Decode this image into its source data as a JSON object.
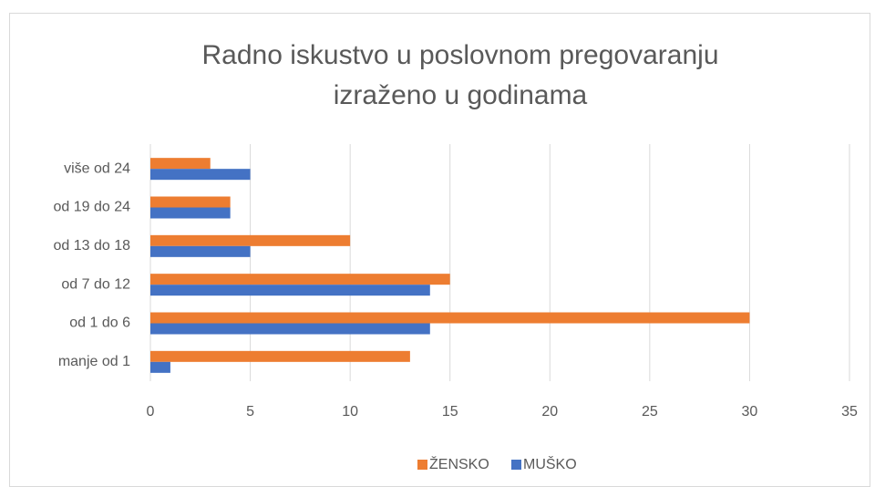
{
  "chart_data": {
    "type": "barh",
    "title": [
      "Radno iskustvo u poslovnom pregovaranju",
      "izraženo u godinama"
    ],
    "categories": [
      "manje od 1",
      "od 1 do 6",
      "od 7 do 12",
      "od 13 do 18",
      "od 19 do 24",
      "više od 24"
    ],
    "series": [
      {
        "name": "ŽENSKO",
        "color": "#ed7d31",
        "values": [
          13,
          30,
          15,
          10,
          4,
          3
        ]
      },
      {
        "name": "MUŠKO",
        "color": "#4472c4",
        "values": [
          1,
          14,
          14,
          5,
          4,
          5
        ]
      }
    ],
    "xlim": [
      0,
      35
    ],
    "xticks": [
      0,
      5,
      10,
      15,
      20,
      25,
      30,
      35
    ],
    "grid": true,
    "legend": "bottom"
  }
}
